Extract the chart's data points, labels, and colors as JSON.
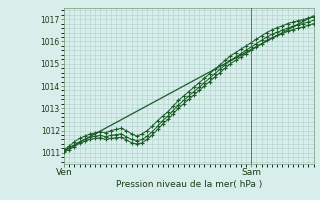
{
  "background_color": "#d8eeea",
  "plot_bg_color": "#d8eeea",
  "grid_color": "#b0d0cc",
  "line_color": "#1a5c28",
  "ylim": [
    1010.5,
    1017.5
  ],
  "xlim": [
    0,
    48
  ],
  "yticks": [
    1011,
    1012,
    1013,
    1014,
    1015,
    1016,
    1017
  ],
  "xtick_positions": [
    0,
    36
  ],
  "xtick_labels": [
    "Ven",
    "Sam"
  ],
  "xlabel": "Pression niveau de la mer( hPa )",
  "vline_x": 36,
  "line1_x": [
    0,
    1,
    2,
    3,
    4,
    5,
    6,
    7,
    8,
    9,
    10,
    11,
    12,
    13,
    14,
    15,
    16,
    17,
    18,
    19,
    20,
    21,
    22,
    23,
    24,
    25,
    26,
    27,
    28,
    29,
    30,
    31,
    32,
    33,
    34,
    35,
    36,
    37,
    38,
    39,
    40,
    41,
    42,
    43,
    44,
    45,
    46,
    47,
    48
  ],
  "line1_y": [
    1011.15,
    1011.3,
    1011.5,
    1011.65,
    1011.75,
    1011.85,
    1011.9,
    1011.95,
    1011.9,
    1012.0,
    1012.05,
    1012.1,
    1012.0,
    1011.85,
    1011.75,
    1011.85,
    1012.0,
    1012.2,
    1012.45,
    1012.65,
    1012.85,
    1013.1,
    1013.35,
    1013.55,
    1013.75,
    1013.95,
    1014.15,
    1014.35,
    1014.55,
    1014.75,
    1014.95,
    1015.15,
    1015.35,
    1015.5,
    1015.65,
    1015.8,
    1015.95,
    1016.1,
    1016.25,
    1016.4,
    1016.52,
    1016.62,
    1016.7,
    1016.8,
    1016.87,
    1016.93,
    1016.98,
    1017.05,
    1017.1
  ],
  "line2_x": [
    0,
    1,
    2,
    3,
    4,
    5,
    6,
    7,
    8,
    9,
    10,
    11,
    12,
    13,
    14,
    15,
    16,
    17,
    18,
    19,
    20,
    21,
    22,
    23,
    24,
    25,
    26,
    27,
    28,
    29,
    30,
    31,
    32,
    33,
    34,
    35,
    36,
    37,
    38,
    39,
    40,
    41,
    42,
    43,
    44,
    45,
    46,
    47,
    48
  ],
  "line2_y": [
    1011.1,
    1011.2,
    1011.35,
    1011.5,
    1011.6,
    1011.7,
    1011.75,
    1011.78,
    1011.72,
    1011.78,
    1011.82,
    1011.85,
    1011.72,
    1011.6,
    1011.55,
    1011.6,
    1011.75,
    1011.95,
    1012.2,
    1012.45,
    1012.65,
    1012.9,
    1013.15,
    1013.35,
    1013.55,
    1013.75,
    1013.95,
    1014.15,
    1014.35,
    1014.55,
    1014.75,
    1014.95,
    1015.15,
    1015.3,
    1015.45,
    1015.6,
    1015.75,
    1015.9,
    1016.05,
    1016.2,
    1016.32,
    1016.42,
    1016.5,
    1016.6,
    1016.68,
    1016.75,
    1016.8,
    1016.88,
    1016.95
  ],
  "line3_x": [
    0,
    1,
    2,
    3,
    4,
    5,
    6,
    7,
    8,
    9,
    10,
    11,
    12,
    13,
    14,
    15,
    16,
    17,
    18,
    19,
    20,
    21,
    22,
    23,
    24,
    25,
    26,
    27,
    28,
    29,
    30,
    31,
    32,
    33,
    34,
    35,
    36,
    37,
    38,
    39,
    40,
    41,
    42,
    43,
    44,
    45,
    46,
    47,
    48
  ],
  "line3_y": [
    1011.05,
    1011.15,
    1011.28,
    1011.42,
    1011.52,
    1011.6,
    1011.65,
    1011.68,
    1011.6,
    1011.65,
    1011.68,
    1011.7,
    1011.58,
    1011.45,
    1011.4,
    1011.45,
    1011.6,
    1011.8,
    1012.05,
    1012.3,
    1012.5,
    1012.75,
    1013.0,
    1013.2,
    1013.4,
    1013.6,
    1013.8,
    1014.0,
    1014.2,
    1014.4,
    1014.6,
    1014.8,
    1015.0,
    1015.15,
    1015.3,
    1015.45,
    1015.6,
    1015.75,
    1015.9,
    1016.05,
    1016.17,
    1016.27,
    1016.35,
    1016.45,
    1016.53,
    1016.6,
    1016.65,
    1016.73,
    1016.8
  ],
  "straight_line_x": [
    0,
    48
  ],
  "straight_line_y": [
    1011.1,
    1017.15
  ]
}
